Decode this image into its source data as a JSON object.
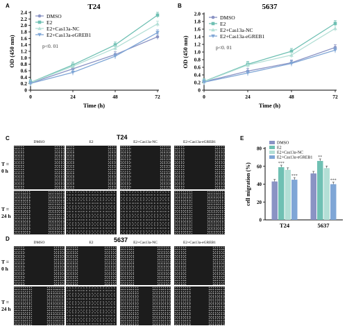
{
  "panels": {
    "A": {
      "letter": "A",
      "title": "T24"
    },
    "B": {
      "letter": "B",
      "title": "5637"
    },
    "C": {
      "letter": "C",
      "title": "T24"
    },
    "D": {
      "letter": "D",
      "title": "5637"
    },
    "E": {
      "letter": "E"
    }
  },
  "legend_labels": [
    "DMSO",
    "E2",
    "E2+Cas13a-NC",
    "E2+Cas13a-eGREB1"
  ],
  "pvalue_text": "p<0. 01",
  "micro_columns": [
    "DMSO",
    "E2",
    "E2+Cas13a-NC",
    "E2+Cas13a-eGREB1"
  ],
  "micro_rows": [
    {
      "line1": "T =",
      "line2": "0 h"
    },
    {
      "line1": "T =",
      "line2": "24 h"
    }
  ],
  "colors": {
    "DMSO": "#8a93c4",
    "E2": "#6fc0b3",
    "E2+Cas13a-NC": "#b3dfd6",
    "E2+Cas13a-eGREB1": "#7fa6d6"
  },
  "chart_data": [
    {
      "type": "line",
      "title": "T24",
      "xlabel": "Time (h)",
      "ylabel": "OD (450 nm)",
      "x": [
        0,
        24,
        48,
        72
      ],
      "xlim": [
        0,
        72
      ],
      "ylim": [
        0,
        2.4
      ],
      "yticks": [
        "0",
        "0.2",
        "0.4",
        "0.6",
        "0.8",
        "1.0",
        "1.2",
        "1.4",
        "1.6",
        "1.8",
        "2.0",
        "2.2",
        "2.4"
      ],
      "annotation": "p<0. 01",
      "legend_position": "top-left",
      "series": [
        {
          "name": "DMSO",
          "values": [
            0.22,
            0.66,
            1.1,
            1.65
          ]
        },
        {
          "name": "E2",
          "values": [
            0.24,
            0.78,
            1.4,
            2.32
          ]
        },
        {
          "name": "E2+Cas13a-NC",
          "values": [
            0.23,
            0.74,
            1.3,
            2.05
          ]
        },
        {
          "name": "E2+Cas13a-eGREB1",
          "values": [
            0.21,
            0.55,
            1.05,
            1.78
          ]
        }
      ]
    },
    {
      "type": "line",
      "title": "5637",
      "xlabel": "Time (h)",
      "ylabel": "OD (450 nm)",
      "x": [
        0,
        24,
        48,
        72
      ],
      "xlim": [
        0,
        72
      ],
      "ylim": [
        0,
        2.0
      ],
      "yticks": [
        "0",
        "0.2",
        "0.4",
        "0.6",
        "0.8",
        "1.0",
        "1.2",
        "1.4",
        "1.6",
        "1.8",
        "2.0"
      ],
      "annotation": "p<0. 01",
      "legend_position": "top-left",
      "series": [
        {
          "name": "DMSO",
          "values": [
            0.22,
            0.5,
            0.72,
            1.12
          ]
        },
        {
          "name": "E2",
          "values": [
            0.23,
            0.68,
            1.02,
            1.75
          ]
        },
        {
          "name": "E2+Cas13a-NC",
          "values": [
            0.22,
            0.66,
            0.92,
            1.62
          ]
        },
        {
          "name": "E2+Cas13a-eGREB1",
          "values": [
            0.21,
            0.45,
            0.7,
            1.05
          ]
        }
      ]
    },
    {
      "type": "bar",
      "ylabel": "cell migration (%)",
      "categories": [
        "T24",
        "5637"
      ],
      "ylim": [
        0,
        80
      ],
      "yticks": [
        "0",
        "20",
        "40",
        "60",
        "80"
      ],
      "legend_position": "top-left",
      "series": [
        {
          "name": "DMSO",
          "values": [
            43,
            52
          ],
          "sig": [
            "",
            ""
          ]
        },
        {
          "name": "E2",
          "values": [
            59,
            66
          ],
          "sig": [
            "***",
            "**"
          ]
        },
        {
          "name": "E2+Cas13a-NC",
          "values": [
            56,
            58
          ],
          "sig": [
            "",
            ""
          ]
        },
        {
          "name": "E2+Cas13a-eGREB1",
          "values": [
            45,
            40
          ],
          "sig": [
            "***",
            "***"
          ]
        }
      ]
    }
  ]
}
